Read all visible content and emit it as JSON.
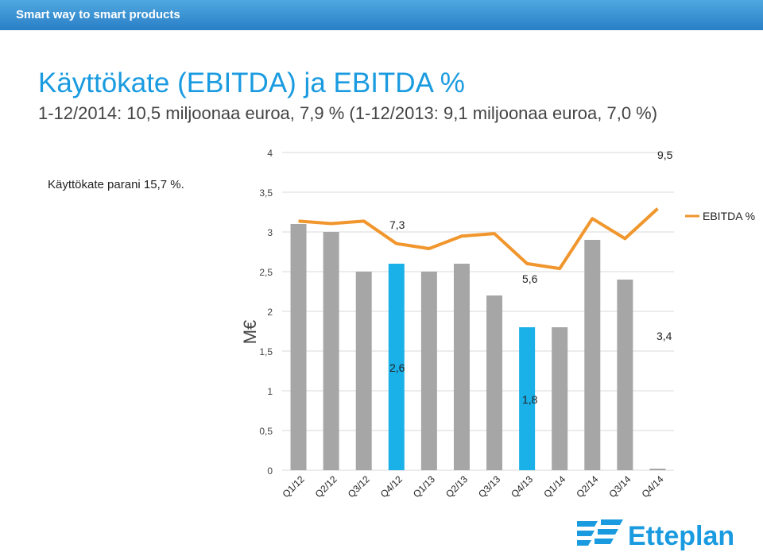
{
  "header": {
    "tagline": "Smart way to smart products"
  },
  "slide": {
    "title": "Käyttökate (EBITDA) ja EBITDA %",
    "subtitle": "1-12/2014: 10,5 miljoonaa euroa, 7,9 % (1-12/2013: 9,1 miljoonaa euroa, 7,0 %)",
    "note": "Käyttökate parani 15,7 %."
  },
  "logo": {
    "text": "Etteplan"
  },
  "colors": {
    "accent": "#1a9be0",
    "bar": "#a6a6a6",
    "bar_highlight": "#1ab0e8",
    "line": "#f0962d",
    "header": "#2a7fc6"
  },
  "chart_data": {
    "type": "bar",
    "categories": [
      "Q1/12",
      "Q2/12",
      "Q3/12",
      "Q4/12",
      "Q1/13",
      "Q2/13",
      "Q3/13",
      "Q4/13",
      "Q1/14",
      "Q2/14",
      "Q3/14",
      "Q4/14"
    ],
    "ylabel": "M€",
    "ylim": [
      0,
      4
    ],
    "yticks": [
      "0",
      "0,5",
      "1",
      "1,5",
      "2",
      "2,5",
      "3",
      "3,5",
      "4"
    ],
    "grid": true,
    "series": [
      {
        "name": "",
        "type": "bar",
        "values": [
          3.1,
          3.0,
          2.5,
          2.6,
          2.5,
          2.6,
          2.2,
          1.8,
          1.8,
          2.9,
          2.4,
          0.02
        ],
        "highlight": [
          3,
          7
        ]
      },
      {
        "name": "EBITDA %",
        "type": "line",
        "values": [
          9.5,
          9.4,
          9.5,
          8.6,
          8.4,
          8.9,
          9.0,
          7.8,
          7.6,
          9.6,
          8.8,
          10.0
        ]
      }
    ],
    "data_labels": [
      {
        "text": "9,5",
        "series": "EBITDA %"
      },
      {
        "text": "7,3",
        "series": "EBITDA %"
      },
      {
        "text": "5,6",
        "series": "EBITDA %"
      },
      {
        "text": "3,4",
        "series": "bar"
      },
      {
        "text": "2,6",
        "series": "bar"
      },
      {
        "text": "1,8",
        "series": "bar"
      }
    ],
    "legend": {
      "position": "right",
      "entries": [
        "EBITDA %"
      ]
    }
  }
}
